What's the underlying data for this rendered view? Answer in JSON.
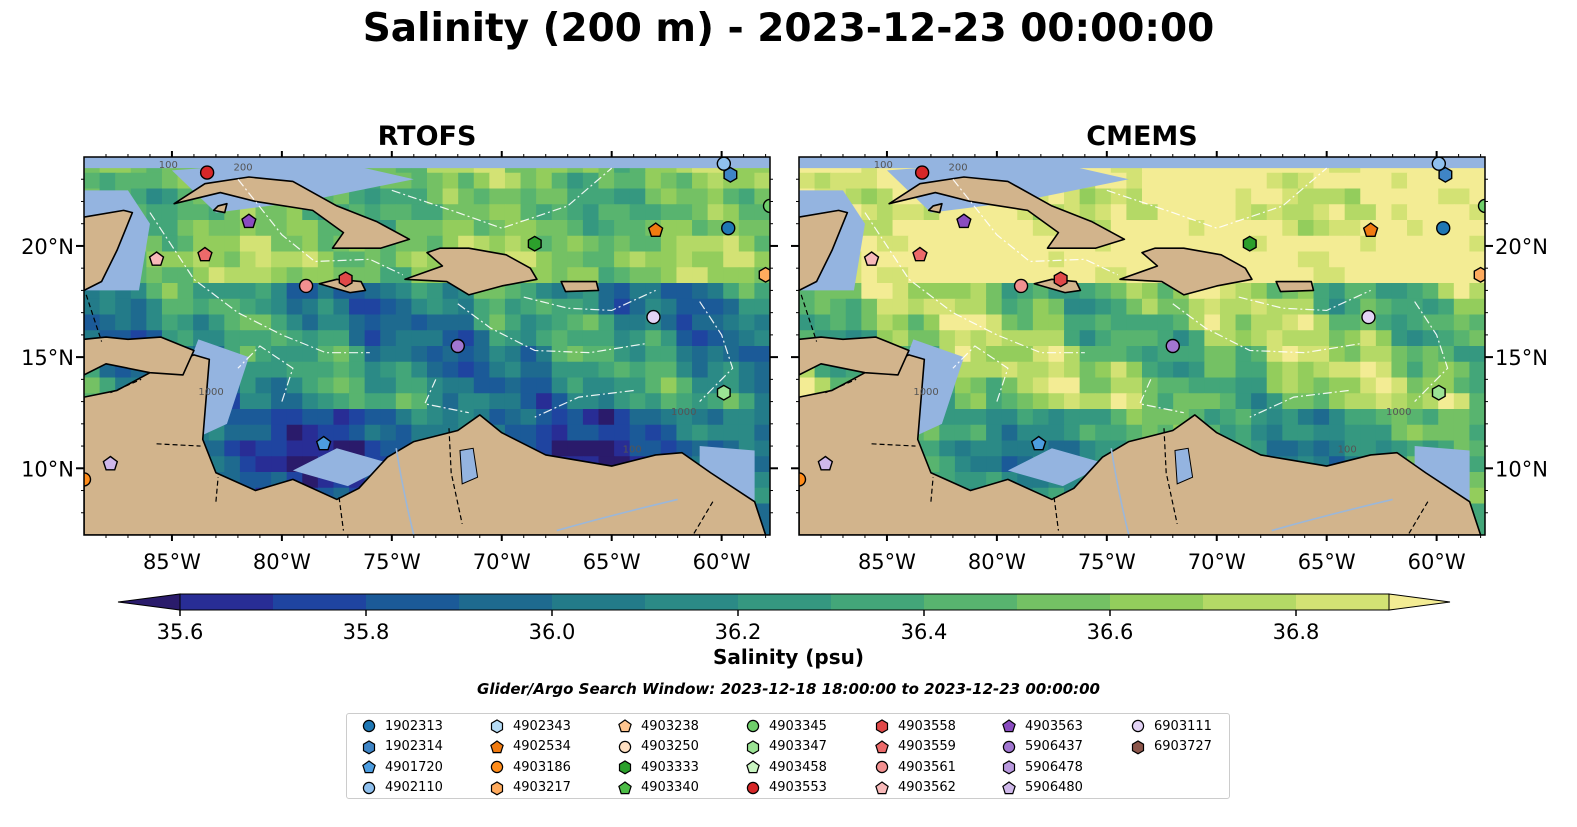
{
  "title": "Salinity (200 m) - 2023-12-23 00:00:00",
  "panels": [
    {
      "title": "RTOFS",
      "field": "rtofs"
    },
    {
      "title": "CMEMS",
      "field": "cmems"
    }
  ],
  "map": {
    "extent_lon": [
      -89,
      -57.8
    ],
    "extent_lat": [
      7,
      24
    ],
    "lon_ticks": [
      -85,
      -80,
      -75,
      -70,
      -65,
      -60
    ],
    "lon_tick_labels": [
      "85°W",
      "80°W",
      "75°W",
      "70°W",
      "65°W",
      "60°W"
    ],
    "lat_ticks": [
      10,
      15,
      20
    ],
    "lat_tick_labels": [
      "10°N",
      "15°N",
      "20°N"
    ],
    "contour_labels": [
      "1000",
      "100",
      "1000",
      "100",
      "200"
    ],
    "land_color": "#d2b48c",
    "shelf_color": "#94b4e0"
  },
  "colorbar": {
    "label": "Salinity (psu)",
    "levels": [
      35.5,
      35.6,
      35.7,
      35.8,
      35.9,
      36.0,
      36.1,
      36.2,
      36.3,
      36.4,
      36.5,
      36.6,
      36.7,
      36.8,
      36.9
    ],
    "ticks": [
      35.6,
      35.8,
      36.0,
      36.2,
      36.4,
      36.6,
      36.8
    ],
    "tick_labels": [
      "35.6",
      "35.8",
      "36.0",
      "36.2",
      "36.4",
      "36.6",
      "36.8"
    ],
    "colors": [
      "#2a1b6b",
      "#282d95",
      "#1f44a0",
      "#1b5a98",
      "#1e6a8f",
      "#237b89",
      "#2b8a86",
      "#359880",
      "#43a679",
      "#58b46f",
      "#74c164",
      "#93cd5c",
      "#b4d966",
      "#d3e274",
      "#f3ec94"
    ],
    "extend": "both"
  },
  "search_window": "Glider/Argo Search Window: 2023-12-18 18:00:00 to 2023-12-23 00:00:00",
  "legend": [
    {
      "id": "1902313",
      "shape": "circle",
      "color": "#1f77b4"
    },
    {
      "id": "1902314",
      "shape": "hexagon",
      "color": "#3f85c6"
    },
    {
      "id": "4901720",
      "shape": "pentagon",
      "color": "#4d9de0"
    },
    {
      "id": "4902110",
      "shape": "circle",
      "color": "#8fc0ee"
    },
    {
      "id": "4902343",
      "shape": "hexagon",
      "color": "#b6dcf6"
    },
    {
      "id": "4902534",
      "shape": "pentagon",
      "color": "#f07a10"
    },
    {
      "id": "4903186",
      "shape": "circle",
      "color": "#ff8c1a"
    },
    {
      "id": "4903217",
      "shape": "hexagon",
      "color": "#ffab5e"
    },
    {
      "id": "4903238",
      "shape": "pentagon",
      "color": "#ffc58f"
    },
    {
      "id": "4903250",
      "shape": "circle",
      "color": "#ffe0c2"
    },
    {
      "id": "4903333",
      "shape": "hexagon",
      "color": "#2ca02c"
    },
    {
      "id": "4903340",
      "shape": "pentagon",
      "color": "#4cbc46"
    },
    {
      "id": "4903345",
      "shape": "circle",
      "color": "#6fcf6a"
    },
    {
      "id": "4903347",
      "shape": "hexagon",
      "color": "#9be394"
    },
    {
      "id": "4903458",
      "shape": "pentagon",
      "color": "#c9f5c1"
    },
    {
      "id": "4903553",
      "shape": "circle",
      "color": "#d62728"
    },
    {
      "id": "4903558",
      "shape": "hexagon",
      "color": "#e04848"
    },
    {
      "id": "4903559",
      "shape": "pentagon",
      "color": "#ec6a6a"
    },
    {
      "id": "4903561",
      "shape": "circle",
      "color": "#f29090"
    },
    {
      "id": "4903562",
      "shape": "pentagon",
      "color": "#f8b9b9"
    },
    {
      "id": "4903563",
      "shape": "pentagon",
      "color": "#8a4cc0"
    },
    {
      "id": "5906437",
      "shape": "circle",
      "color": "#a176d0"
    },
    {
      "id": "5906478",
      "shape": "hexagon",
      "color": "#b999de"
    },
    {
      "id": "5906480",
      "shape": "pentagon",
      "color": "#cfb8ea"
    },
    {
      "id": "6903111",
      "shape": "circle",
      "color": "#e3d3f5"
    },
    {
      "id": "6903727",
      "shape": "hexagon",
      "color": "#8c564b"
    }
  ],
  "floats": [
    {
      "id": "4903553",
      "lon": -83.4,
      "lat": 23.3
    },
    {
      "id": "4903563",
      "lon": -81.5,
      "lat": 21.1
    },
    {
      "id": "4903562",
      "lon": -85.7,
      "lat": 19.4
    },
    {
      "id": "4903559",
      "lon": -83.5,
      "lat": 19.6
    },
    {
      "id": "4903561",
      "lon": -78.9,
      "lat": 18.2
    },
    {
      "id": "4903558",
      "lon": -77.1,
      "lat": 18.5
    },
    {
      "id": "4903333",
      "lon": -68.5,
      "lat": 20.1
    },
    {
      "id": "4902534",
      "lon": -63.0,
      "lat": 20.7
    },
    {
      "id": "4902110",
      "lon": -59.9,
      "lat": 23.7
    },
    {
      "id": "1902314",
      "lon": -59.6,
      "lat": 23.2
    },
    {
      "id": "1902313",
      "lon": -59.7,
      "lat": 20.8
    },
    {
      "id": "4903345",
      "lon": -57.8,
      "lat": 21.8
    },
    {
      "id": "4903217",
      "lon": -58.0,
      "lat": 18.7
    },
    {
      "id": "6903111",
      "lon": -63.1,
      "lat": 16.8
    },
    {
      "id": "5906437",
      "lon": -72.0,
      "lat": 15.5
    },
    {
      "id": "4901720",
      "lon": -78.1,
      "lat": 11.1
    },
    {
      "id": "4903347",
      "lon": -59.9,
      "lat": 13.4
    },
    {
      "id": "5906480",
      "lon": -87.8,
      "lat": 10.2
    },
    {
      "id": "4903186",
      "lon": -89.0,
      "lat": 9.5
    }
  ]
}
